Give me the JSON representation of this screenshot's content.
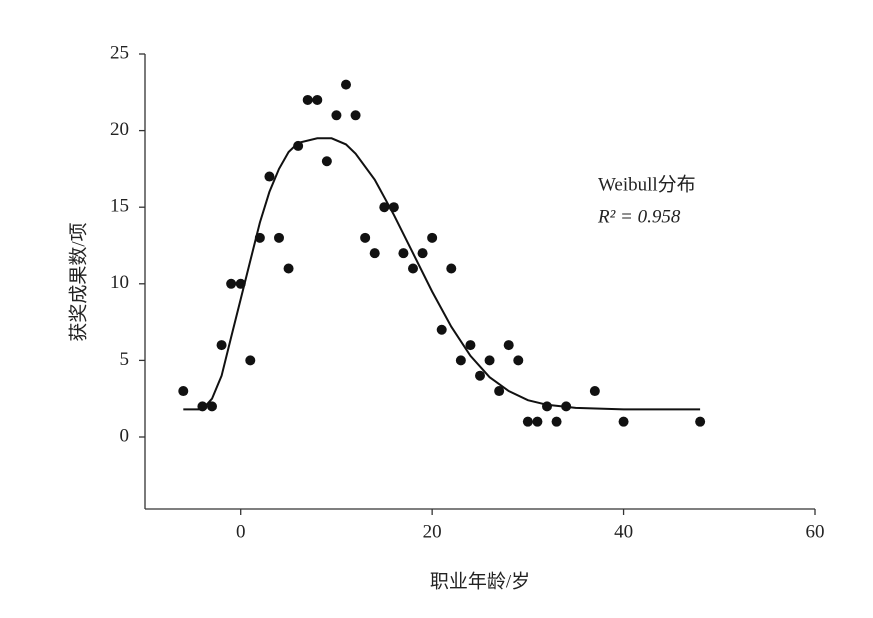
{
  "chart_data": {
    "type": "scatter",
    "x_label": "职业年龄/岁",
    "y_label": "获奖成果数/项",
    "annotations": [
      "Weibull分布",
      "R² = 0.958"
    ],
    "color": "#111111",
    "x": [
      -6,
      -4,
      -3,
      -2,
      -1,
      0,
      1,
      2,
      3,
      4,
      5,
      6,
      7,
      8,
      9,
      10,
      11,
      12,
      13,
      14,
      15,
      16,
      17,
      18,
      19,
      20,
      21,
      22,
      23,
      24,
      25,
      26,
      27,
      28,
      29,
      30,
      31,
      32,
      33,
      34,
      37,
      40,
      48
    ],
    "values": [
      3,
      2,
      2,
      6,
      10,
      10,
      5,
      13,
      17,
      13,
      11,
      19,
      22,
      22,
      18,
      21,
      23,
      21,
      13,
      12,
      15,
      15,
      12,
      11,
      12,
      13,
      7,
      11,
      5,
      6,
      4,
      5,
      3,
      6,
      5,
      1,
      1,
      2,
      1,
      2,
      3,
      1,
      1
    ],
    "curve": {
      "x": [
        -6,
        -4,
        -3,
        -2,
        -1,
        0,
        1,
        2,
        3,
        4,
        5,
        6,
        8,
        9.5,
        11,
        12,
        14,
        16,
        18,
        20,
        22,
        24,
        26,
        28,
        30,
        32,
        35,
        40,
        48
      ],
      "values": [
        1.8,
        1.8,
        2.5,
        4,
        6.5,
        9,
        11.5,
        14,
        16,
        17.5,
        18.6,
        19.2,
        19.5,
        19.5,
        19.1,
        18.5,
        16.8,
        14.5,
        12,
        9.5,
        7.2,
        5.3,
        3.9,
        3,
        2.4,
        2.1,
        1.9,
        1.8,
        1.8
      ]
    },
    "xlim": [
      -10,
      60
    ],
    "xticks": [
      0,
      20,
      40,
      60
    ],
    "ylim": [
      -4.7,
      25
    ],
    "yticks": [
      0,
      5,
      10,
      15,
      20,
      25
    ]
  }
}
